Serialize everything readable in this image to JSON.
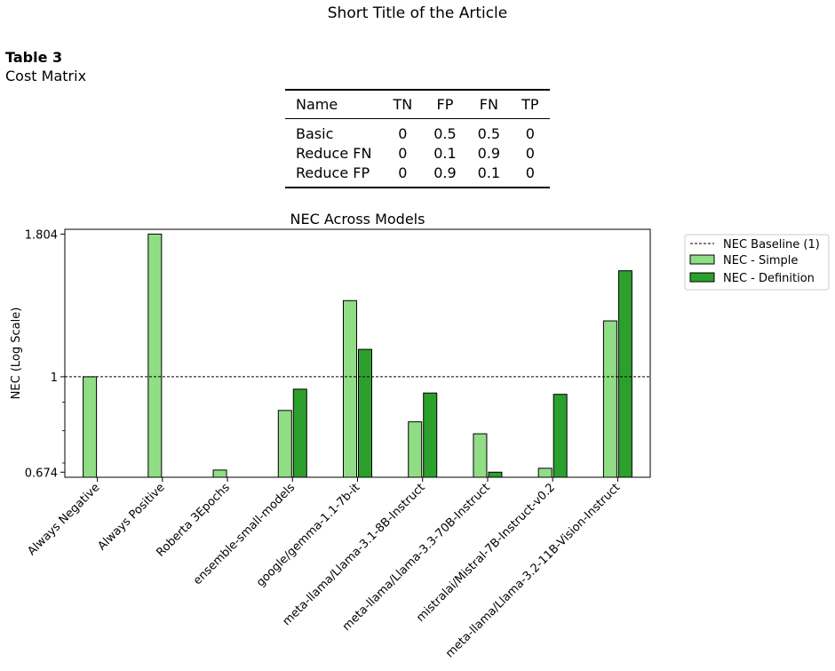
{
  "page": {
    "header": "Short Title of the Article"
  },
  "table": {
    "label": "Table 3",
    "title": "Cost Matrix",
    "columns": [
      "Name",
      "TN",
      "FP",
      "FN",
      "TP"
    ],
    "rows": [
      [
        "Basic",
        "0",
        "0.5",
        "0.5",
        "0"
      ],
      [
        "Reduce FN",
        "0",
        "0.1",
        "0.9",
        "0"
      ],
      [
        "Reduce FP",
        "0",
        "0.9",
        "0.1",
        "0"
      ]
    ]
  },
  "chart_data": {
    "type": "bar",
    "title": "NEC Across Models",
    "xlabel": "",
    "ylabel": "NEC (Log Scale)",
    "yscale": "log",
    "ylim": [
      0.66,
      1.84
    ],
    "yticks": [
      0.674,
      1,
      1.804
    ],
    "ytick_labels": [
      "0.674",
      "1",
      "1.804"
    ],
    "categories": [
      "Always Negative",
      "Always Positive",
      "Roberta 3Epochs",
      "ensemble-small-models",
      "google/gemma-1.1-7b-it",
      "meta-llama/Llama-3.1-8B-Instruct",
      "meta-llama/Llama-3.3-70B-Instruct",
      "mistralai/Mistral-7B-Instruct-v0.2",
      "meta-llama/Llama-3.2-11B-Vision-Instruct"
    ],
    "series": [
      {
        "name": "NEC - Simple",
        "color": "#90dd85",
        "values": [
          1.0,
          1.804,
          0.68,
          0.87,
          1.37,
          0.83,
          0.79,
          0.685,
          1.26
        ]
      },
      {
        "name": "NEC - Definition",
        "color": "#2ca02c",
        "values": [
          null,
          null,
          null,
          0.95,
          1.12,
          0.935,
          0.674,
          0.93,
          1.55
        ]
      }
    ],
    "baseline": {
      "name": "NEC Baseline (1)",
      "value": 1
    },
    "legend": "outside top-right",
    "grid": false
  }
}
